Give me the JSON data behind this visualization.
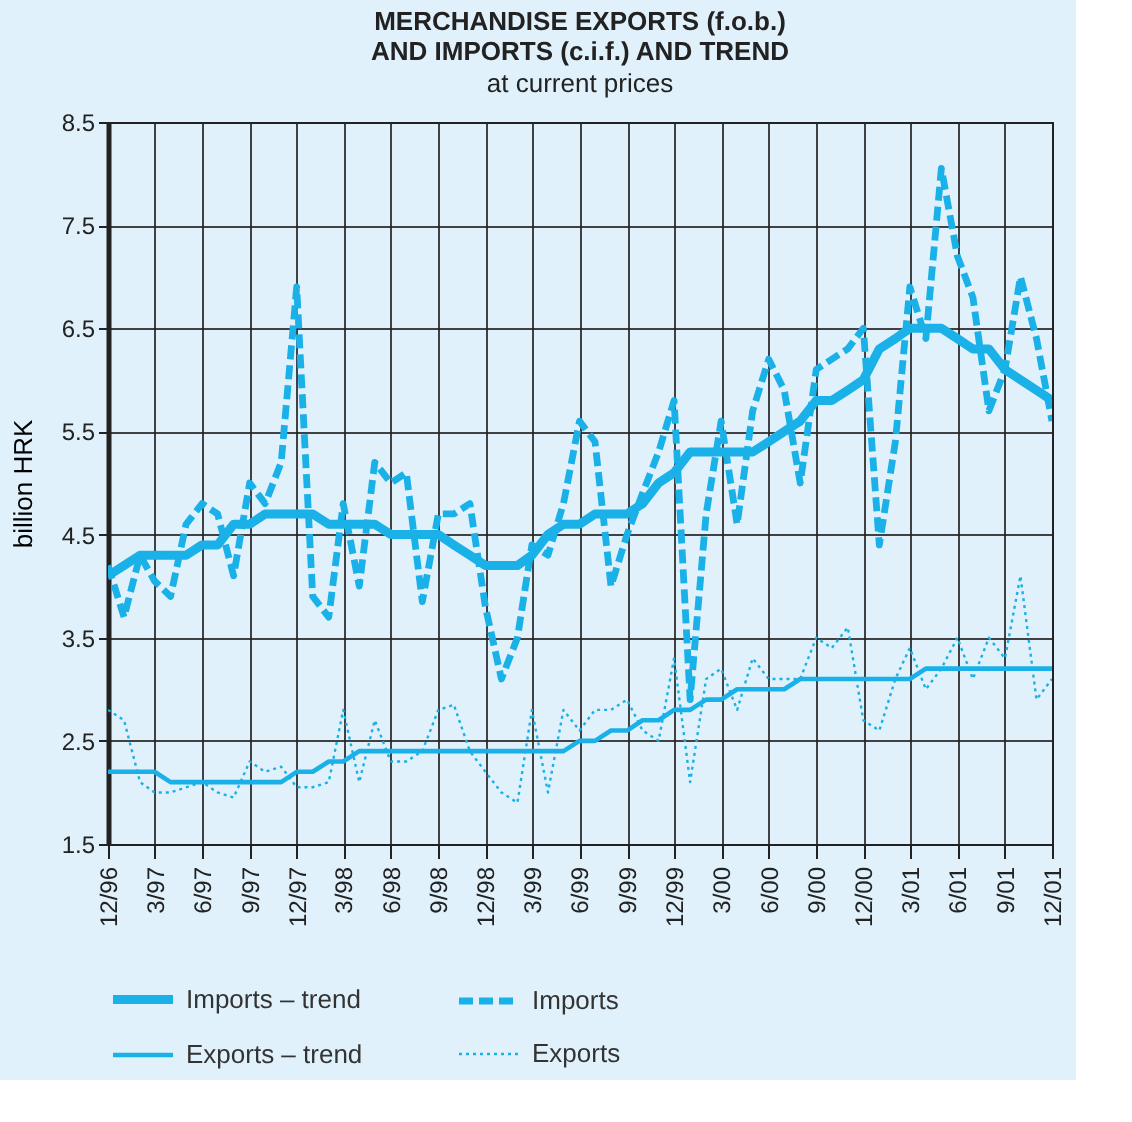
{
  "chart_data": {
    "type": "line",
    "title": "MERCHANDISE EXPORTS (f.o.b.)\nAND IMPORTS (c.i.f.) AND TREND",
    "subtitle": "at current prices",
    "ylabel": "billion HRK",
    "x": [
      "1996-12",
      "1997-01",
      "1997-02",
      "1997-03",
      "1997-04",
      "1997-05",
      "1997-06",
      "1997-07",
      "1997-08",
      "1997-09",
      "1997-10",
      "1997-11",
      "1997-12",
      "1998-01",
      "1998-02",
      "1998-03",
      "1998-04",
      "1998-05",
      "1998-06",
      "1998-07",
      "1998-08",
      "1998-09",
      "1998-10",
      "1998-11",
      "1998-12",
      "1999-01",
      "1999-02",
      "1999-03",
      "1999-04",
      "1999-05",
      "1999-06",
      "1999-07",
      "1999-08",
      "1999-09",
      "1999-10",
      "1999-11",
      "1999-12",
      "2000-01",
      "2000-02",
      "2000-03",
      "2000-04",
      "2000-05",
      "2000-06",
      "2000-07",
      "2000-08",
      "2000-09",
      "2000-10",
      "2000-11",
      "2000-12",
      "2001-01",
      "2001-02",
      "2001-03",
      "2001-04",
      "2001-05",
      "2001-06",
      "2001-07",
      "2001-08",
      "2001-09",
      "2001-10",
      "2001-11",
      "2001-12"
    ],
    "series": [
      {
        "name": "Imports – trend",
        "color": "#1ab0e8",
        "line_style": "solid",
        "values": [
          4.1,
          4.2,
          4.3,
          4.3,
          4.3,
          4.3,
          4.4,
          4.4,
          4.6,
          4.6,
          4.7,
          4.7,
          4.7,
          4.7,
          4.6,
          4.6,
          4.6,
          4.6,
          4.5,
          4.5,
          4.5,
          4.5,
          4.4,
          4.3,
          4.2,
          4.2,
          4.2,
          4.3,
          4.5,
          4.6,
          4.6,
          4.7,
          4.7,
          4.7,
          4.8,
          5.0,
          5.1,
          5.3,
          5.3,
          5.3,
          5.3,
          5.3,
          5.4,
          5.5,
          5.6,
          5.8,
          5.8,
          5.9,
          6.0,
          6.3,
          6.4,
          6.5,
          6.5,
          6.5,
          6.4,
          6.3,
          6.3,
          6.1,
          6.0,
          5.9,
          5.8
        ]
      },
      {
        "name": "Imports",
        "color": "#1ab0e8",
        "line_style": "dashed",
        "values": [
          4.2,
          3.7,
          4.3,
          4.05,
          3.9,
          4.6,
          4.8,
          4.7,
          4.1,
          5.0,
          4.8,
          5.2,
          6.9,
          3.9,
          3.7,
          4.8,
          4.0,
          5.2,
          5.0,
          5.1,
          3.85,
          4.7,
          4.7,
          4.8,
          3.8,
          3.1,
          3.5,
          4.4,
          4.3,
          4.8,
          5.6,
          5.4,
          4.0,
          4.5,
          4.9,
          5.3,
          5.8,
          2.9,
          4.7,
          5.6,
          4.6,
          5.7,
          6.2,
          5.9,
          5.0,
          6.1,
          6.2,
          6.3,
          6.5,
          4.4,
          5.4,
          6.9,
          6.4,
          8.05,
          7.2,
          6.8,
          5.7,
          6.1,
          7.0,
          6.4,
          5.6
        ]
      },
      {
        "name": "Exports – trend",
        "color": "#1ab0e8",
        "line_style": "solid",
        "values": [
          2.2,
          2.2,
          2.2,
          2.2,
          2.1,
          2.1,
          2.1,
          2.1,
          2.1,
          2.1,
          2.1,
          2.1,
          2.2,
          2.2,
          2.3,
          2.3,
          2.4,
          2.4,
          2.4,
          2.4,
          2.4,
          2.4,
          2.4,
          2.4,
          2.4,
          2.4,
          2.4,
          2.4,
          2.4,
          2.4,
          2.5,
          2.5,
          2.6,
          2.6,
          2.7,
          2.7,
          2.8,
          2.8,
          2.9,
          2.9,
          3.0,
          3.0,
          3.0,
          3.0,
          3.1,
          3.1,
          3.1,
          3.1,
          3.1,
          3.1,
          3.1,
          3.1,
          3.2,
          3.2,
          3.2,
          3.2,
          3.2,
          3.2,
          3.2,
          3.2,
          3.2
        ]
      },
      {
        "name": "Exports",
        "color": "#1ab0e8",
        "line_style": "dotted",
        "values": [
          2.8,
          2.7,
          2.1,
          2.0,
          2.0,
          2.05,
          2.1,
          2.0,
          1.95,
          2.3,
          2.2,
          2.25,
          2.05,
          2.05,
          2.1,
          2.8,
          2.1,
          2.7,
          2.3,
          2.3,
          2.4,
          2.8,
          2.85,
          2.4,
          2.2,
          2.0,
          1.9,
          2.8,
          2.0,
          2.8,
          2.6,
          2.8,
          2.8,
          2.9,
          2.6,
          2.5,
          3.3,
          2.1,
          3.1,
          3.2,
          2.8,
          3.3,
          3.1,
          3.1,
          3.1,
          3.5,
          3.4,
          3.6,
          2.7,
          2.6,
          3.1,
          3.4,
          3.0,
          3.2,
          3.5,
          3.1,
          3.5,
          3.3,
          4.1,
          2.9,
          3.1
        ]
      }
    ],
    "xlim": [
      "1996-12",
      "2001-12"
    ],
    "xticks": [
      {
        "value": "1996-12",
        "label": "12/96"
      },
      {
        "value": "1997-03",
        "label": "3/97"
      },
      {
        "value": "1997-06",
        "label": "6/97"
      },
      {
        "value": "1997-09",
        "label": "9/97"
      },
      {
        "value": "1997-12",
        "label": "12/97"
      },
      {
        "value": "1998-03",
        "label": "3/98"
      },
      {
        "value": "1998-06",
        "label": "6/98"
      },
      {
        "value": "1998-09",
        "label": "9/98"
      },
      {
        "value": "1998-12",
        "label": "12/98"
      },
      {
        "value": "1999-03",
        "label": "3/99"
      },
      {
        "value": "1999-06",
        "label": "6/99"
      },
      {
        "value": "1999-09",
        "label": "9/99"
      },
      {
        "value": "1999-12",
        "label": "12/99"
      },
      {
        "value": "2000-03",
        "label": "3/00"
      },
      {
        "value": "2000-06",
        "label": "6/00"
      },
      {
        "value": "2000-09",
        "label": "9/00"
      },
      {
        "value": "2000-12",
        "label": "12/00"
      },
      {
        "value": "2001-03",
        "label": "3/01"
      },
      {
        "value": "2001-06",
        "label": "6/01"
      },
      {
        "value": "2001-09",
        "label": "9/01"
      },
      {
        "value": "2001-12",
        "label": "12/01"
      }
    ],
    "ylim": [
      1.5,
      8.5
    ],
    "yticks": [
      1.5,
      2.5,
      3.5,
      4.5,
      5.5,
      6.5,
      7.5,
      8.5
    ],
    "grid": true,
    "legend": "bottom"
  }
}
